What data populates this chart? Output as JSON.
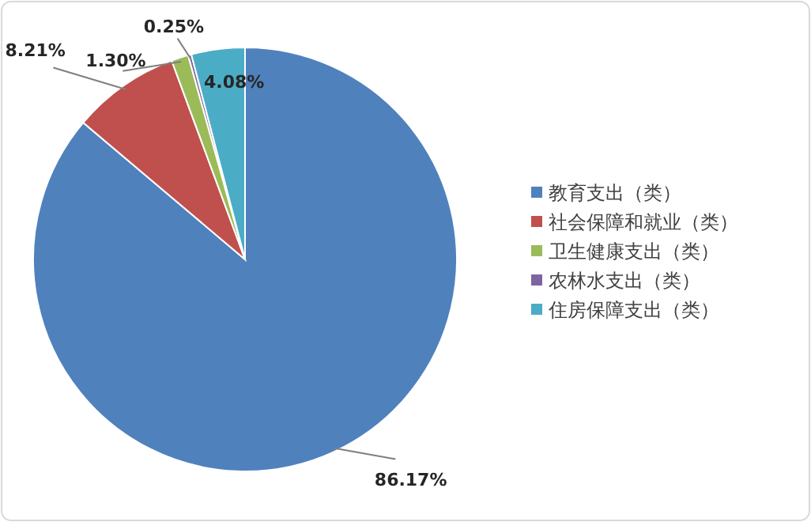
{
  "chart_data": {
    "type": "pie",
    "categories": [
      "教育支出（类）",
      "社会保障和就业（类）",
      "卫生健康支出（类）",
      "农林水支出（类）",
      "住房保障支出（类）"
    ],
    "values": [
      86.17,
      8.21,
      1.3,
      0.25,
      4.08
    ],
    "colors": [
      "#4f81bd",
      "#c0504d",
      "#9bbb59",
      "#8064a2",
      "#4bacc6"
    ],
    "value_labels": [
      "86.17%",
      "8.21%",
      "1.30%",
      "0.25%",
      "4.08%"
    ],
    "legend": "right"
  }
}
